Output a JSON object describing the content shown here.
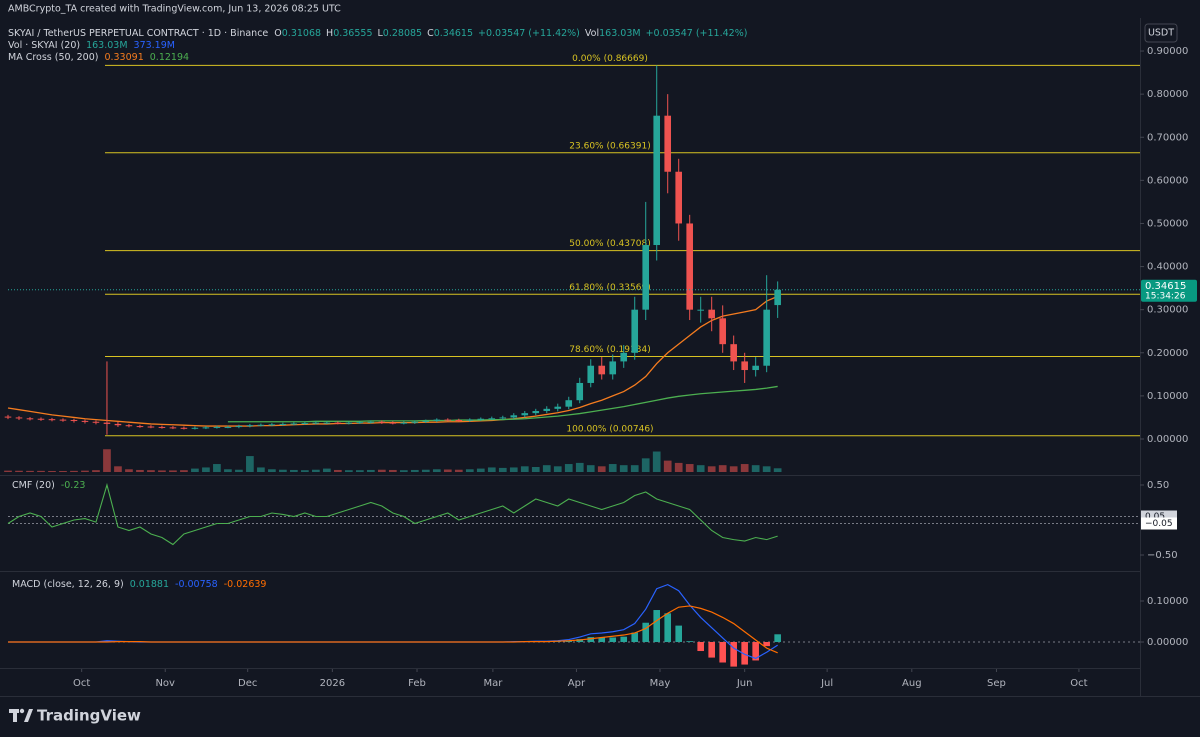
{
  "header": {
    "credit": "AMBCrypto_TA created with TradingView.com, Jun 13, 2026 08:25 UTC",
    "symbol": "SKYAI / TetherUS PERPETUAL CONTRACT · 1D · Binance",
    "ohlc_keys": [
      "O",
      "H",
      "L",
      "C"
    ],
    "change": "+0.03547 (+11.42%)",
    "vol_key": "Vol",
    "vol_value": "163.03M",
    "vol_change": "+0.03547 (+11.42%)",
    "vol_indicator": "Vol · SKYAI (20)",
    "vol_values": [
      "163.03M",
      "373.19M"
    ],
    "ma_indicator": "MA Cross (50, 200)",
    "currency": "USDT",
    "countdown": "15:34:26"
  },
  "footer": {
    "logo": "TradingView"
  },
  "chart_data": [
    {
      "type": "candlestick",
      "x": [
        0,
        1,
        2,
        3,
        4,
        5,
        6,
        7,
        8,
        9,
        10,
        11,
        12,
        13,
        14,
        15,
        16,
        17,
        18,
        19,
        20,
        21,
        22,
        23,
        24,
        25,
        26,
        27,
        28,
        29,
        30,
        31,
        32,
        33,
        34,
        35,
        36,
        37,
        38,
        39,
        40,
        41,
        42,
        43,
        44,
        45,
        46,
        47,
        48,
        49,
        50,
        51,
        52,
        53,
        54,
        55,
        56,
        57,
        58,
        59,
        60,
        61,
        62,
        63,
        64,
        65,
        66,
        67,
        68,
        69,
        70
      ],
      "open": [
        0.052,
        0.05,
        0.048,
        0.047,
        0.046,
        0.045,
        0.044,
        0.042,
        0.04,
        0.038,
        0.035,
        0.032,
        0.03,
        0.029,
        0.028,
        0.027,
        0.026,
        0.025,
        0.026,
        0.027,
        0.028,
        0.028,
        0.03,
        0.032,
        0.033,
        0.034,
        0.035,
        0.036,
        0.037,
        0.038,
        0.038,
        0.037,
        0.038,
        0.039,
        0.04,
        0.038,
        0.037,
        0.038,
        0.04,
        0.042,
        0.045,
        0.044,
        0.043,
        0.045,
        0.047,
        0.048,
        0.05,
        0.055,
        0.06,
        0.065,
        0.07,
        0.075,
        0.09,
        0.13,
        0.17,
        0.15,
        0.18,
        0.2,
        0.3,
        0.45,
        0.75,
        0.62,
        0.5,
        0.3,
        0.3,
        0.28,
        0.22,
        0.18,
        0.16,
        0.17,
        0.31068
      ],
      "high": [
        0.056,
        0.053,
        0.051,
        0.05,
        0.049,
        0.048,
        0.047,
        0.045,
        0.043,
        0.18,
        0.04,
        0.035,
        0.033,
        0.032,
        0.031,
        0.03,
        0.029,
        0.029,
        0.03,
        0.031,
        0.031,
        0.033,
        0.035,
        0.036,
        0.037,
        0.038,
        0.039,
        0.04,
        0.041,
        0.041,
        0.041,
        0.041,
        0.042,
        0.043,
        0.043,
        0.041,
        0.041,
        0.043,
        0.045,
        0.048,
        0.048,
        0.047,
        0.048,
        0.05,
        0.052,
        0.054,
        0.06,
        0.065,
        0.07,
        0.076,
        0.082,
        0.098,
        0.142,
        0.185,
        0.19,
        0.196,
        0.218,
        0.33,
        0.55,
        0.86669,
        0.8,
        0.65,
        0.52,
        0.33,
        0.33,
        0.31,
        0.24,
        0.2,
        0.19,
        0.38,
        0.36555
      ],
      "low": [
        0.046,
        0.044,
        0.043,
        0.042,
        0.041,
        0.04,
        0.038,
        0.036,
        0.034,
        0.01,
        0.028,
        0.027,
        0.026,
        0.025,
        0.024,
        0.023,
        0.022,
        0.022,
        0.023,
        0.024,
        0.025,
        0.025,
        0.027,
        0.029,
        0.03,
        0.031,
        0.032,
        0.033,
        0.034,
        0.035,
        0.034,
        0.034,
        0.035,
        0.036,
        0.035,
        0.034,
        0.034,
        0.035,
        0.037,
        0.039,
        0.041,
        0.04,
        0.04,
        0.042,
        0.044,
        0.045,
        0.046,
        0.05,
        0.055,
        0.06,
        0.064,
        0.069,
        0.083,
        0.12,
        0.138,
        0.138,
        0.165,
        0.184,
        0.276,
        0.414,
        0.57,
        0.46,
        0.276,
        0.27,
        0.25,
        0.2,
        0.16,
        0.13,
        0.145,
        0.155,
        0.28085
      ],
      "close": [
        0.05,
        0.048,
        0.047,
        0.046,
        0.045,
        0.044,
        0.042,
        0.04,
        0.038,
        0.035,
        0.032,
        0.03,
        0.029,
        0.028,
        0.027,
        0.026,
        0.025,
        0.026,
        0.027,
        0.028,
        0.028,
        0.03,
        0.032,
        0.033,
        0.034,
        0.035,
        0.036,
        0.037,
        0.038,
        0.038,
        0.037,
        0.038,
        0.039,
        0.04,
        0.038,
        0.037,
        0.038,
        0.04,
        0.042,
        0.045,
        0.044,
        0.043,
        0.045,
        0.047,
        0.048,
        0.05,
        0.055,
        0.06,
        0.065,
        0.07,
        0.075,
        0.09,
        0.13,
        0.17,
        0.15,
        0.18,
        0.2,
        0.3,
        0.45,
        0.75,
        0.62,
        0.5,
        0.3,
        0.3,
        0.28,
        0.22,
        0.18,
        0.16,
        0.17,
        0.3,
        0.34615
      ],
      "up_color": "#26a69a",
      "down_color": "#ef5350",
      "volume": [
        60,
        55,
        50,
        50,
        45,
        45,
        50,
        60,
        80,
        1000,
        250,
        120,
        90,
        80,
        70,
        70,
        80,
        150,
        200,
        350,
        120,
        100,
        700,
        200,
        120,
        100,
        90,
        80,
        100,
        150,
        90,
        80,
        80,
        90,
        100,
        90,
        80,
        90,
        100,
        120,
        110,
        100,
        120,
        150,
        200,
        180,
        200,
        250,
        220,
        300,
        250,
        350,
        400,
        300,
        250,
        350,
        300,
        300,
        600,
        900,
        500,
        400,
        350,
        300,
        250,
        300,
        250,
        350,
        300,
        250,
        163.03
      ],
      "volume_ylim": [
        0,
        20000
      ],
      "ma": [
        {
          "color": "#f57c1f",
          "values": [
            0.072,
            0.068,
            0.064,
            0.06,
            0.056,
            0.053,
            0.05,
            0.047,
            0.045,
            0.043,
            0.041,
            0.039,
            0.037,
            0.035,
            0.034,
            0.033,
            0.032,
            0.031,
            0.03,
            0.03,
            0.03,
            0.03,
            0.03,
            0.031,
            0.031,
            0.032,
            0.033,
            0.034,
            0.035,
            0.035,
            0.036,
            0.036,
            0.037,
            0.037,
            0.038,
            0.038,
            0.038,
            0.038,
            0.039,
            0.039,
            0.04,
            0.04,
            0.041,
            0.042,
            0.043,
            0.045,
            0.047,
            0.05,
            0.053,
            0.057,
            0.061,
            0.066,
            0.073,
            0.082,
            0.09,
            0.1,
            0.11,
            0.125,
            0.145,
            0.175,
            0.2,
            0.22,
            0.24,
            0.26,
            0.275,
            0.285,
            0.29,
            0.295,
            0.3,
            0.32,
            0.33091
          ]
        },
        {
          "color": "#4caf50",
          "values": [
            null,
            null,
            null,
            null,
            null,
            null,
            null,
            null,
            null,
            null,
            null,
            null,
            null,
            null,
            null,
            null,
            null,
            null,
            null,
            null,
            0.04,
            0.04,
            0.04,
            0.04,
            0.04,
            0.04,
            0.04,
            0.04,
            0.041,
            0.041,
            0.041,
            0.041,
            0.041,
            0.042,
            0.042,
            0.042,
            0.042,
            0.042,
            0.043,
            0.043,
            0.043,
            0.044,
            0.044,
            0.044,
            0.045,
            0.045,
            0.046,
            0.047,
            0.049,
            0.051,
            0.053,
            0.056,
            0.059,
            0.063,
            0.067,
            0.071,
            0.075,
            0.08,
            0.085,
            0.09,
            0.095,
            0.099,
            0.102,
            0.105,
            0.107,
            0.109,
            0.111,
            0.113,
            0.115,
            0.118,
            0.12194
          ]
        }
      ],
      "fib_color": "#d8c322",
      "fib_levels": [
        {
          "value": 0.86669,
          "label": "0.00% (0.86669)"
        },
        {
          "value": 0.66391,
          "label": "23.60% (0.66391)"
        },
        {
          "value": 0.43708,
          "label": "50.00% (0.43708)"
        },
        {
          "value": 0.33569,
          "label": "61.80% (0.33569)"
        },
        {
          "value": 0.19134,
          "label": "78.60% (0.19134)"
        },
        {
          "value": 0.00746,
          "label": "100.00% (0.00746)"
        }
      ],
      "xlim": [
        0,
        102.5
      ],
      "xticks": [
        {
          "value": 6.7,
          "label": "Oct"
        },
        {
          "value": 14.3,
          "label": "Nov"
        },
        {
          "value": 21.8,
          "label": "Dec"
        },
        {
          "value": 29.5,
          "label": "2026"
        },
        {
          "value": 37.2,
          "label": "Feb"
        },
        {
          "value": 44.1,
          "label": "Mar"
        },
        {
          "value": 51.7,
          "label": "Apr"
        },
        {
          "value": 59.3,
          "label": "May"
        },
        {
          "value": 67.0,
          "label": "Jun"
        },
        {
          "value": 74.5,
          "label": "Jul"
        },
        {
          "value": 82.2,
          "label": "Aug"
        },
        {
          "value": 89.9,
          "label": "Sep"
        },
        {
          "value": 97.4,
          "label": "Oct"
        }
      ],
      "ylim": [
        -0.0835,
        0.972
      ],
      "yticks": [
        {
          "value": 0,
          "label": "0.00000"
        },
        {
          "value": 0.1,
          "label": "0.10000"
        },
        {
          "value": 0.2,
          "label": "0.20000"
        },
        {
          "value": 0.3,
          "label": "0.30000"
        },
        {
          "value": 0.4,
          "label": "0.40000"
        },
        {
          "value": 0.5,
          "label": "0.50000"
        },
        {
          "value": 0.6,
          "label": "0.60000"
        },
        {
          "value": 0.7,
          "label": "0.70000"
        },
        {
          "value": 0.8,
          "label": "0.80000"
        },
        {
          "value": 0.9,
          "label": "0.90000"
        }
      ]
    },
    {
      "type": "line",
      "title": "CMF (20)",
      "series": [
        {
          "color": "#4caf50",
          "values": [
            -0.05,
            0.05,
            0.1,
            0.05,
            -0.1,
            -0.05,
            0,
            0.02,
            -0.03,
            0.5,
            -0.1,
            -0.15,
            -0.1,
            -0.2,
            -0.25,
            -0.35,
            -0.2,
            -0.15,
            -0.1,
            -0.05,
            -0.05,
            0,
            0.05,
            0.05,
            0.1,
            0.08,
            0.05,
            0.1,
            0.05,
            0.05,
            0.1,
            0.15,
            0.2,
            0.25,
            0.2,
            0.1,
            0.05,
            -0.05,
            0,
            0.05,
            0.1,
            0,
            0.05,
            0.1,
            0.15,
            0.2,
            0.1,
            0.2,
            0.3,
            0.25,
            0.2,
            0.3,
            0.25,
            0.2,
            0.15,
            0.2,
            0.25,
            0.35,
            0.4,
            0.3,
            0.25,
            0.2,
            0.15,
            0,
            -0.15,
            -0.25,
            -0.28,
            -0.3,
            -0.25,
            -0.28,
            -0.23
          ]
        }
      ],
      "levels": [
        {
          "value": 0.05,
          "label": "0.05"
        },
        {
          "value": -0.05,
          "label": "−0.05"
        }
      ],
      "ylim": [
        -0.714,
        0.614
      ],
      "yticks": [
        {
          "value": 0.5,
          "label": "0.50"
        },
        {
          "value": -0.5,
          "label": "−0.50"
        }
      ]
    },
    {
      "type": "macd",
      "title": "MACD (close, 12, 26, 9)",
      "histogram": {
        "up_color": "#26a69a",
        "down_color": "#ff5252",
        "values": [
          0,
          0,
          0,
          0,
          0,
          0,
          0,
          0,
          0,
          0.003,
          0.001,
          0,
          -0.001,
          0,
          0,
          0,
          0,
          0,
          0,
          0,
          0,
          0,
          0,
          0,
          0,
          0,
          0,
          0,
          0,
          0,
          0,
          0,
          0,
          0,
          0,
          0,
          0,
          0,
          0,
          0,
          0,
          0,
          0,
          0,
          0,
          0,
          0.001,
          0,
          0.001,
          0.001,
          0.001,
          0.003,
          0.007,
          0.012,
          0.011,
          0.011,
          0.013,
          0.023,
          0.047,
          0.078,
          0.07,
          0.04,
          0.002,
          -0.022,
          -0.038,
          -0.05,
          -0.06,
          -0.055,
          -0.045,
          -0.01,
          0.01881
        ]
      },
      "series": [
        {
          "color": "#2962ff",
          "values": [
            0,
            0,
            0,
            0,
            0,
            0,
            0,
            0,
            0,
            0.003,
            0.002,
            0.001,
            0,
            0,
            0,
            0,
            0,
            0,
            0,
            0,
            0,
            0,
            0,
            0,
            0,
            0,
            0,
            0,
            0,
            0,
            0,
            0,
            0,
            0,
            0,
            0,
            0,
            0,
            0,
            0,
            0,
            0,
            0,
            0,
            0,
            0,
            0.001,
            0.001,
            0.002,
            0.002,
            0.003,
            0.006,
            0.012,
            0.02,
            0.022,
            0.025,
            0.03,
            0.045,
            0.08,
            0.13,
            0.14,
            0.125,
            0.09,
            0.06,
            0.035,
            0.01,
            -0.015,
            -0.03,
            -0.04,
            -0.025,
            -0.00758
          ]
        },
        {
          "color": "#ff6d00",
          "values": [
            0,
            0,
            0,
            0,
            0,
            0,
            0,
            0,
            0,
            0,
            0.001,
            0.001,
            0.001,
            0,
            0,
            0,
            0,
            0,
            0,
            0,
            0,
            0,
            0,
            0,
            0,
            0,
            0,
            0,
            0,
            0,
            0,
            0,
            0,
            0,
            0,
            0,
            0,
            0,
            0,
            0,
            0,
            0,
            0,
            0,
            0,
            0,
            0,
            0.001,
            0.001,
            0.001,
            0.002,
            0.003,
            0.005,
            0.008,
            0.011,
            0.014,
            0.017,
            0.022,
            0.033,
            0.052,
            0.07,
            0.085,
            0.088,
            0.082,
            0.073,
            0.06,
            0.045,
            0.025,
            0.005,
            -0.015,
            -0.02639
          ]
        }
      ],
      "ylim": [
        -0.0634,
        0.1683
      ],
      "yticks": [
        {
          "value": 0.1,
          "label": "0.10000"
        },
        {
          "value": 0,
          "label": "0.00000"
        }
      ]
    }
  ]
}
